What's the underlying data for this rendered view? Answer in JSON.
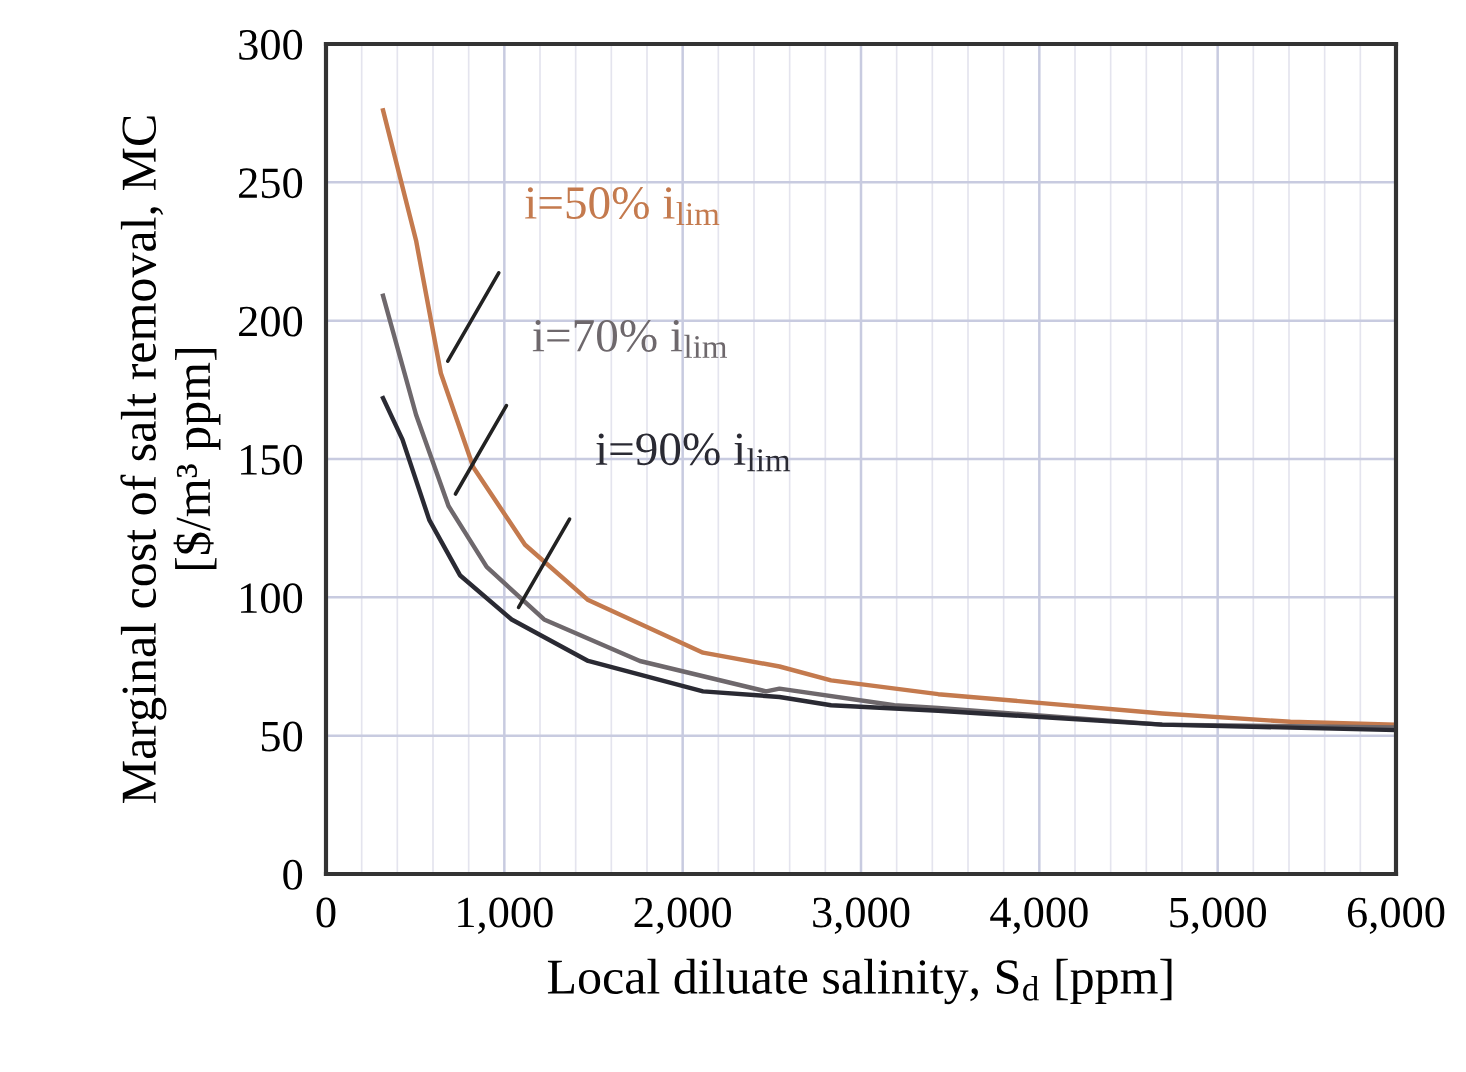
{
  "chart_data": {
    "type": "line",
    "xlabel": "Local diluate salinity, S$_{d}$ [ppm]",
    "ylabel": "Marginal cost of salt removal, MC\n[$/m³ ppm]",
    "xlim": [
      0,
      6000
    ],
    "ylim": [
      0,
      300
    ],
    "xticks": [
      0,
      {
        "value": 1000,
        "label": "1,000"
      },
      {
        "value": 2000,
        "label": "2,000"
      },
      {
        "value": 3000,
        "label": "3,000"
      },
      {
        "value": 4000,
        "label": "4,000"
      },
      {
        "value": 5000,
        "label": "5,000"
      },
      {
        "value": 6000,
        "label": "6,000"
      }
    ],
    "yticks": [
      0,
      50,
      100,
      150,
      200,
      250,
      300
    ],
    "grid": true,
    "marker": "none",
    "line_style": "solid",
    "series": [
      {
        "color": "#c47a4e",
        "x": [
          320,
          505,
          644,
          826,
          1116,
          1470,
          2114,
          2543,
          2832,
          3433,
          4689,
          5408,
          6000
        ],
        "values": [
          276,
          229,
          181,
          147,
          119,
          99,
          80,
          75,
          70,
          65,
          58,
          55,
          54
        ]
      },
      {
        "color": "#6e686c",
        "x": [
          320,
          505,
          687,
          901,
          1223,
          1760,
          2468,
          2543,
          3187,
          3433,
          4689,
          6000
        ],
        "values": [
          209,
          166,
          133,
          111,
          92,
          77,
          66,
          67,
          61,
          60,
          54,
          53
        ]
      },
      {
        "color": "#2a2a33",
        "x": [
          320,
          429,
          579,
          751,
          1041,
          1470,
          2114,
          2543,
          2832,
          3433,
          4689,
          6000
        ],
        "values": [
          172,
          157,
          128,
          108,
          92,
          77,
          66,
          64,
          61,
          59,
          54,
          52
        ]
      }
    ],
    "annotations": [
      {
        "text": "i=50% i$_{lim}$",
        "x": 644,
        "y": 181
      },
      {
        "text": "i=70% i$_{lim}$",
        "x": 687,
        "y": 133
      },
      {
        "text": "i=90% i$_{lim}$",
        "x": 1041,
        "y": 92
      }
    ]
  }
}
